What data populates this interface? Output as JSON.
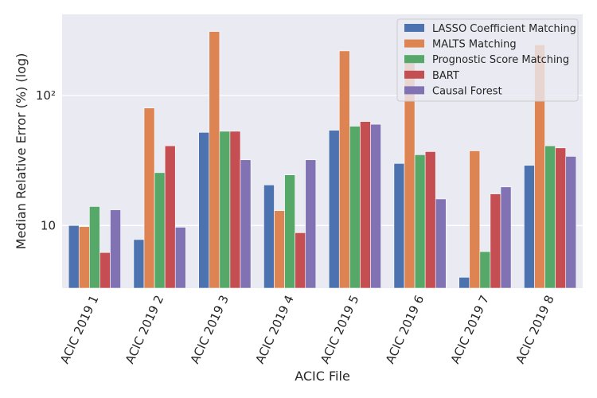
{
  "chart_data": {
    "type": "bar",
    "title": "",
    "xlabel": "ACIC File",
    "ylabel": "Median Relative Error (%) (log)",
    "yscale": "log",
    "ylim": [
      3.3,
      420
    ],
    "yticks": [
      {
        "value": 10,
        "label": "10"
      },
      {
        "value": 100,
        "label": "10²"
      }
    ],
    "grid": true,
    "legend_position": "top-right",
    "categories": [
      "ACIC 2019 1",
      "ACIC 2019 2",
      "ACIC 2019 3",
      "ACIC 2019 4",
      "ACIC 2019 5",
      "ACIC 2019 6",
      "ACIC 2019 7",
      "ACIC 2019 8"
    ],
    "series": [
      {
        "name": "LASSO Coefficient Matching",
        "color": "#4c72b0",
        "values": [
          10,
          7.8,
          52,
          20.5,
          54,
          30,
          4,
          29
        ]
      },
      {
        "name": "MALTS Matching",
        "color": "#dd8452",
        "values": [
          9.8,
          80,
          310,
          13,
          220,
          200,
          37.5,
          245
        ]
      },
      {
        "name": "Prognostic Score Matching",
        "color": "#55a868",
        "values": [
          14,
          25.5,
          53,
          24.5,
          58,
          35,
          6.3,
          41
        ]
      },
      {
        "name": "BART",
        "color": "#c44e52",
        "values": [
          6.2,
          41,
          53,
          8.8,
          63,
          37,
          17.5,
          39.5
        ]
      },
      {
        "name": "Causal Forest",
        "color": "#8172b3",
        "values": [
          13.2,
          9.7,
          32,
          32,
          60,
          16,
          19.8,
          34
        ]
      }
    ]
  }
}
